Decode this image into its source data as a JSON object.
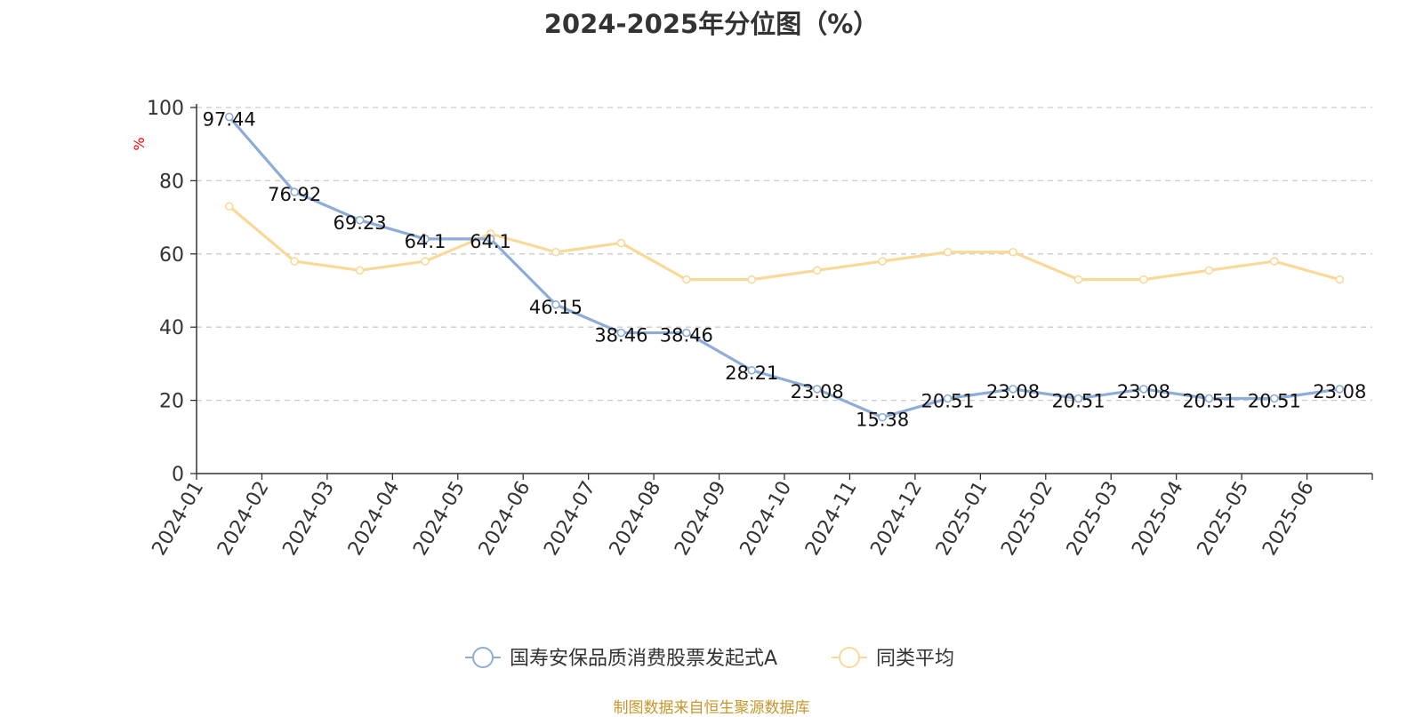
{
  "chart_data": {
    "type": "line",
    "title": "2024-2025年分位图（%）",
    "ylabel": "%",
    "ylim": [
      0,
      100
    ],
    "yticks": [
      0,
      20,
      40,
      60,
      80,
      100
    ],
    "grid": true,
    "legend_position": "bottom",
    "categories": [
      "2024-01",
      "2024-02",
      "2024-03",
      "2024-04",
      "2024-05",
      "2024-06",
      "2024-07",
      "2024-08",
      "2024-09",
      "2024-10",
      "2024-11",
      "2024-12",
      "2025-01",
      "2025-02",
      "2025-03",
      "2025-04",
      "2025-05",
      "2025-06"
    ],
    "series": [
      {
        "name": "国寿安保品质消费股票发起式A",
        "color": "#8eacd8",
        "values": [
          97.44,
          76.92,
          69.23,
          64.1,
          64.1,
          46.15,
          38.46,
          38.46,
          28.21,
          23.08,
          15.38,
          20.51,
          23.08,
          20.51,
          23.08,
          20.51,
          20.51,
          23.08
        ],
        "labels": [
          "97.44",
          "76.92",
          "69.23",
          "64.1",
          "64.1",
          "46.15",
          "38.46",
          "38.46",
          "28.21",
          "23.08",
          "15.38",
          "20.51",
          "23.08",
          "20.51",
          "23.08",
          "20.51",
          "20.51",
          "23.08"
        ]
      },
      {
        "name": "同类平均",
        "color": "#f9d998",
        "values": [
          73,
          58,
          55.5,
          58,
          65.5,
          60.5,
          63,
          53,
          53,
          55.5,
          58,
          60.5,
          60.5,
          53,
          53,
          55.5,
          58,
          53
        ]
      }
    ]
  },
  "footer": {
    "source": "制图数据来自恒生聚源数据库"
  }
}
